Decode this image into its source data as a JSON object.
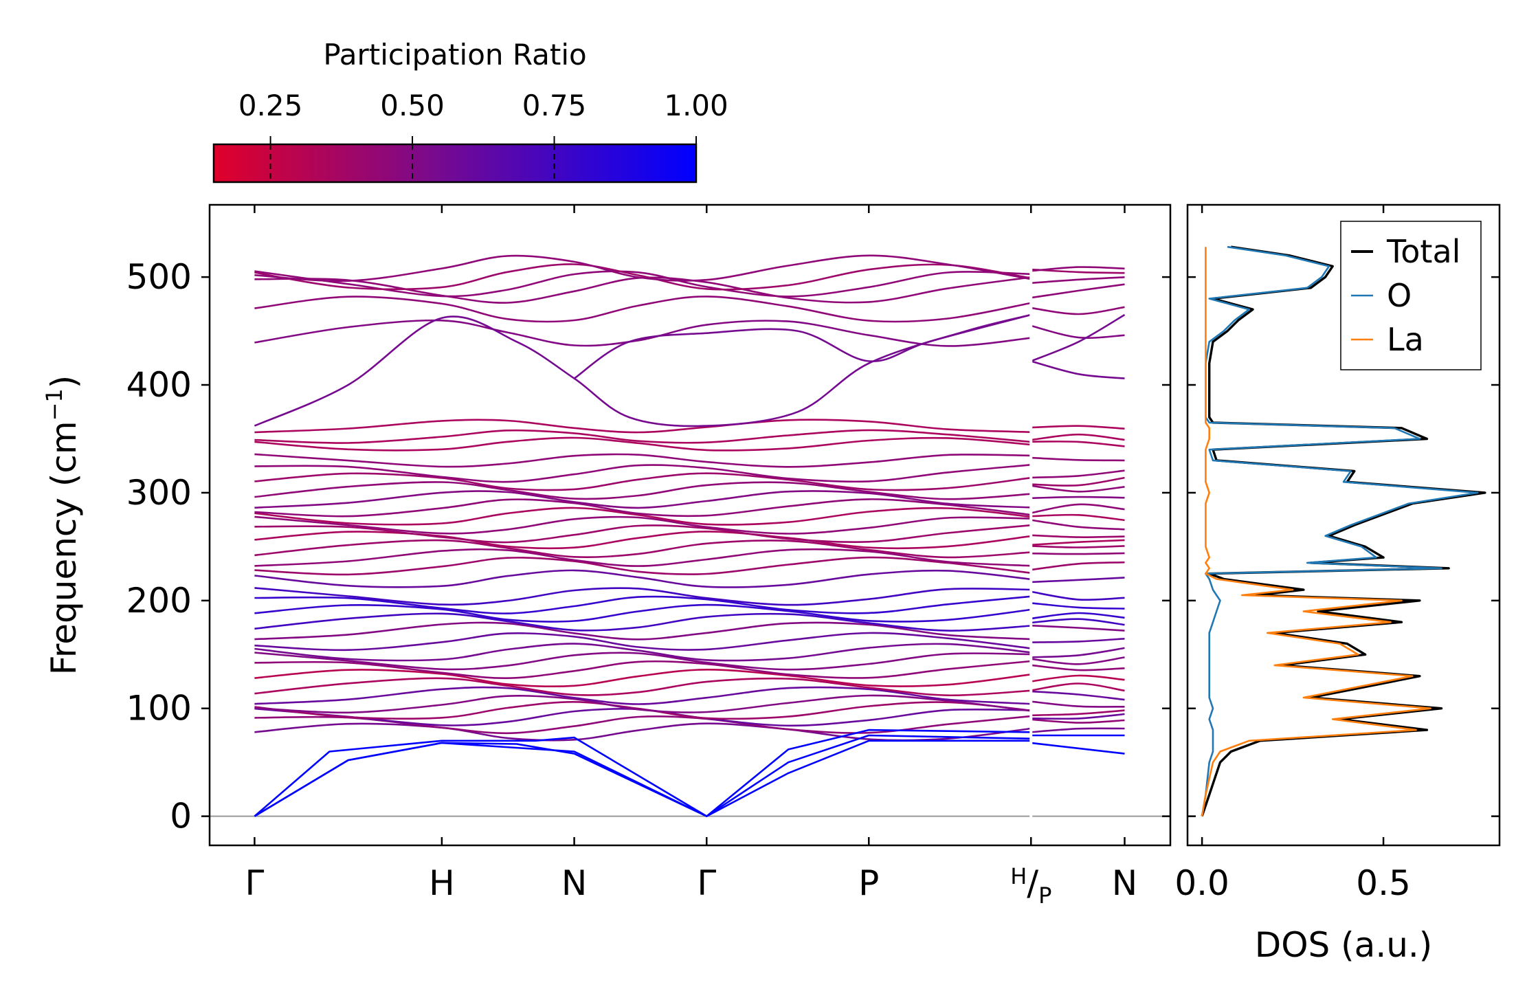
{
  "colors": {
    "band_low": "#e0002a",
    "band_mid": "#7a0a8c",
    "band_high": "#0000ff",
    "dos_total": "#000000",
    "dos_O": "#1f77b4",
    "dos_La": "#ff7f0e",
    "zero_line": "#999999"
  },
  "chart_data": [
    {
      "type": "colorbar",
      "title": "Participation Ratio",
      "range": [
        0.15,
        1.0
      ],
      "ticks": [
        0.25,
        0.5,
        0.75,
        1.0
      ],
      "tick_labels": [
        "0.25",
        "0.50",
        "0.75",
        "1.00"
      ],
      "colormap": [
        "#e0002a",
        "#7a0a8c",
        "#0000ff"
      ]
    },
    {
      "type": "line",
      "name": "phonon-dispersion",
      "ylabel": "Frequency (cm",
      "ylabel_sup": "−1",
      "ylabel_tail": ")",
      "ylim": [
        -27,
        567
      ],
      "yticks": [
        0,
        100,
        200,
        300,
        400,
        500
      ],
      "ytick_labels": [
        "0",
        "100",
        "200",
        "300",
        "400",
        "500"
      ],
      "kpath": [
        {
          "label": "Γ",
          "x": 0.0
        },
        {
          "label": "H",
          "x": 1.0
        },
        {
          "label": "N",
          "x": 1.707
        },
        {
          "label": "Γ",
          "x": 2.414
        },
        {
          "label": "P",
          "x": 3.28
        },
        {
          "label_main": "H",
          "label_sub": "P",
          "x": 4.146
        },
        {
          "label": "N",
          "x": 4.646
        }
      ],
      "xlim": [
        -0.24,
        4.89
      ],
      "path_break_at": 4.146,
      "acoustic_branches": [
        {
          "name": "acoustic-1",
          "x": [
            0,
            0.5,
            1.0,
            1.707,
            2.414,
            2.85,
            3.28,
            4.146
          ],
          "y": [
            0,
            52,
            68,
            60,
            0,
            40,
            70,
            70
          ],
          "pr": 1.0
        },
        {
          "name": "acoustic-2",
          "x": [
            0,
            0.5,
            1.0,
            1.4,
            1.707,
            2.414,
            2.85,
            3.28,
            4.146
          ],
          "y": [
            0,
            52,
            68,
            67,
            58,
            0,
            50,
            75,
            72
          ],
          "pr": 1.0
        },
        {
          "name": "acoustic-3",
          "x": [
            0,
            0.4,
            1.0,
            1.5,
            1.707,
            2.414,
            2.85,
            3.28,
            4.146
          ],
          "y": [
            0,
            60,
            70,
            70,
            73,
            0,
            62,
            80,
            78
          ],
          "pr": 1.0
        },
        {
          "name": "acoustic-4",
          "x": [
            4.146,
            4.646
          ],
          "y": [
            68,
            58
          ],
          "pr": 1.0
        },
        {
          "name": "acoustic-5",
          "x": [
            4.146,
            4.646
          ],
          "y": [
            75,
            75
          ],
          "pr": 1.0
        }
      ],
      "optical_band_centers": [
        78,
        85,
        92,
        98,
        104,
        112,
        120,
        128,
        136,
        144,
        152,
        162,
        172,
        180,
        188,
        196,
        204,
        220,
        232,
        240,
        248,
        256,
        262,
        270,
        278,
        286,
        294,
        302,
        310,
        318,
        330,
        345,
        352,
        362,
        448,
        470,
        488,
        494,
        500,
        508
      ],
      "optical_band_pr": [
        0.55,
        0.45,
        0.6,
        0.4,
        0.5,
        0.6,
        0.35,
        0.3,
        0.45,
        0.5,
        0.55,
        0.6,
        0.5,
        0.75,
        0.8,
        0.8,
        0.75,
        0.6,
        0.4,
        0.45,
        0.4,
        0.35,
        0.4,
        0.45,
        0.35,
        0.45,
        0.5,
        0.45,
        0.4,
        0.45,
        0.45,
        0.35,
        0.35,
        0.35,
        0.5,
        0.45,
        0.45,
        0.45,
        0.4,
        0.45
      ],
      "mid_branch": {
        "x": [
          0,
          0.5,
          1.0,
          1.4,
          1.707,
          2.0,
          2.414,
          2.9,
          3.28,
          3.8,
          4.146
        ],
        "y": [
          362,
          400,
          462,
          440,
          406,
          370,
          362,
          375,
          420,
          450,
          465
        ],
        "pr": 0.55
      },
      "mid_branch_2": {
        "x": [
          1.707,
          2.0,
          2.414,
          2.9,
          3.28,
          3.6,
          4.146
        ],
        "y": [
          406,
          440,
          448,
          450,
          422,
          440,
          465
        ],
        "pr": 0.55
      },
      "seg2_high": [
        {
          "x": [
            4.146,
            4.4,
            4.646
          ],
          "y": [
            422,
            440,
            465
          ]
        },
        {
          "x": [
            4.146,
            4.4,
            4.646
          ],
          "y": [
            422,
            410,
            406
          ]
        }
      ]
    },
    {
      "type": "line",
      "name": "dos",
      "xlabel": "DOS (a.u.)",
      "xlim": [
        -0.04,
        0.82
      ],
      "xticks": [
        0.0,
        0.5
      ],
      "xtick_labels": [
        "0.0",
        "0.5"
      ],
      "ylim": [
        -27,
        567
      ],
      "legend": {
        "placement": "top-right",
        "entries": [
          "Total",
          "O",
          "La"
        ]
      },
      "series": [
        {
          "name": "Total",
          "freq": [
            0,
            20,
            50,
            60,
            65,
            70,
            80,
            90,
            100,
            110,
            120,
            130,
            140,
            150,
            160,
            170,
            180,
            190,
            200,
            205,
            210,
            220,
            225,
            230,
            235,
            240,
            250,
            260,
            270,
            280,
            290,
            300,
            310,
            320,
            330,
            340,
            350,
            360,
            365,
            370,
            380,
            400,
            420,
            440,
            450,
            460,
            470,
            480,
            490,
            500,
            510,
            520,
            528
          ],
          "dos": [
            0.0,
            0.02,
            0.05,
            0.08,
            0.12,
            0.16,
            0.62,
            0.38,
            0.66,
            0.3,
            0.45,
            0.6,
            0.22,
            0.45,
            0.4,
            0.2,
            0.55,
            0.32,
            0.6,
            0.15,
            0.28,
            0.06,
            0.02,
            0.68,
            0.3,
            0.5,
            0.45,
            0.35,
            0.42,
            0.5,
            0.58,
            0.78,
            0.4,
            0.42,
            0.04,
            0.03,
            0.62,
            0.55,
            0.03,
            0.02,
            0.02,
            0.02,
            0.02,
            0.03,
            0.07,
            0.1,
            0.14,
            0.03,
            0.3,
            0.34,
            0.36,
            0.24,
            0.08
          ]
        },
        {
          "name": "O",
          "freq": [
            0,
            20,
            50,
            60,
            65,
            70,
            80,
            90,
            100,
            110,
            120,
            130,
            140,
            150,
            160,
            170,
            180,
            190,
            200,
            205,
            210,
            220,
            225,
            230,
            235,
            240,
            250,
            260,
            270,
            280,
            290,
            300,
            310,
            320,
            330,
            340,
            350,
            360,
            365,
            370,
            380,
            400,
            420,
            440,
            450,
            460,
            470,
            480,
            490,
            500,
            510,
            520,
            528
          ],
          "dos": [
            0.0,
            0.01,
            0.02,
            0.03,
            0.03,
            0.03,
            0.03,
            0.02,
            0.03,
            0.02,
            0.02,
            0.02,
            0.02,
            0.02,
            0.02,
            0.02,
            0.03,
            0.04,
            0.05,
            0.04,
            0.03,
            0.02,
            0.01,
            0.66,
            0.29,
            0.48,
            0.44,
            0.34,
            0.41,
            0.49,
            0.57,
            0.76,
            0.39,
            0.41,
            0.03,
            0.02,
            0.6,
            0.53,
            0.02,
            0.01,
            0.01,
            0.01,
            0.01,
            0.02,
            0.06,
            0.09,
            0.13,
            0.02,
            0.29,
            0.33,
            0.35,
            0.23,
            0.07
          ]
        },
        {
          "name": "La",
          "freq": [
            0,
            20,
            50,
            60,
            65,
            70,
            80,
            90,
            100,
            110,
            120,
            130,
            140,
            150,
            160,
            170,
            180,
            190,
            200,
            205,
            210,
            220,
            225,
            230,
            235,
            240,
            250,
            260,
            270,
            280,
            290,
            300,
            310,
            320,
            330,
            340,
            350,
            360,
            365,
            370,
            380,
            400,
            420,
            440,
            450,
            460,
            470,
            480,
            490,
            500,
            510,
            520,
            528
          ],
          "dos": [
            0.0,
            0.01,
            0.03,
            0.05,
            0.09,
            0.13,
            0.59,
            0.36,
            0.63,
            0.28,
            0.43,
            0.58,
            0.2,
            0.43,
            0.38,
            0.18,
            0.52,
            0.28,
            0.55,
            0.11,
            0.25,
            0.04,
            0.01,
            0.02,
            0.01,
            0.02,
            0.01,
            0.01,
            0.01,
            0.01,
            0.01,
            0.02,
            0.01,
            0.01,
            0.01,
            0.01,
            0.02,
            0.02,
            0.01,
            0.01,
            0.01,
            0.01,
            0.01,
            0.01,
            0.01,
            0.01,
            0.01,
            0.01,
            0.01,
            0.01,
            0.01,
            0.01,
            0.01
          ]
        }
      ]
    }
  ]
}
